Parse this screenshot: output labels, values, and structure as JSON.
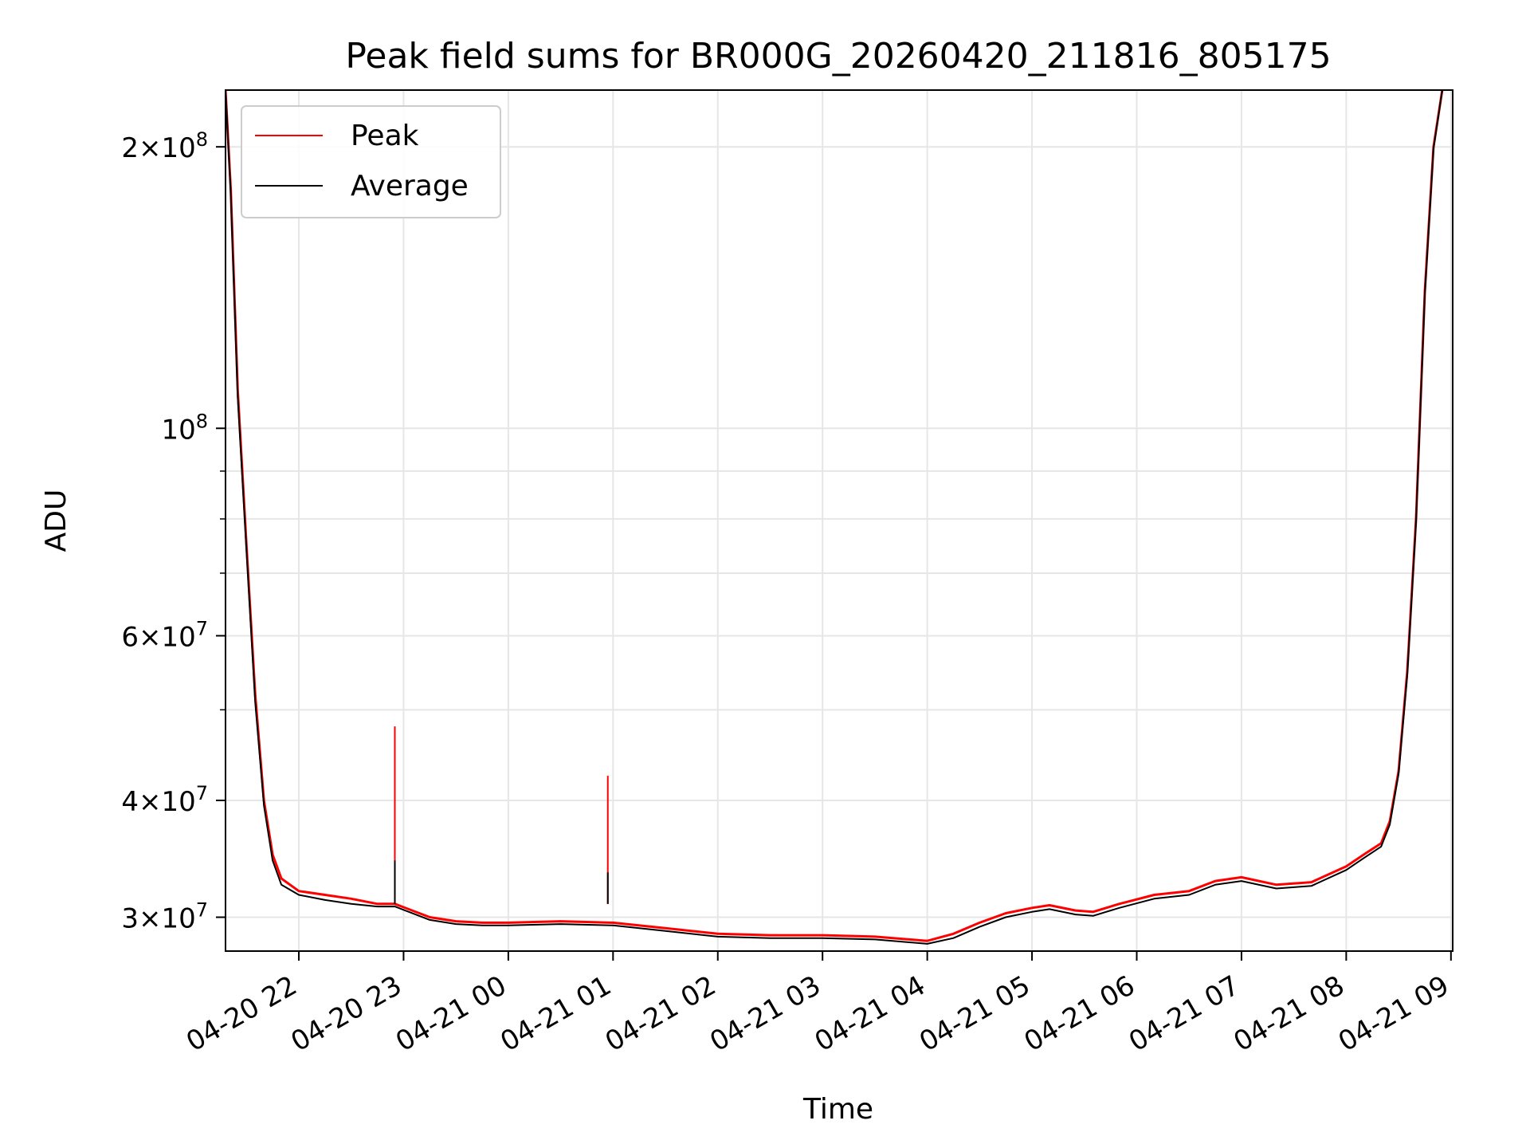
{
  "chart_data": {
    "type": "line",
    "title": "Peak field sums for BR000G_20260420_211816_805175",
    "xlabel": "Time",
    "ylabel": "ADU",
    "yscale": "log",
    "ylim": [
      27600000,
      230000000
    ],
    "xlim": [
      "2026-04-20 21:18",
      "2026-04-21 09:01"
    ],
    "grid": true,
    "legend_position": "upper-left",
    "x_ticks": [
      {
        "t": "2026-04-20 22:00",
        "label": "04-20 22"
      },
      {
        "t": "2026-04-20 23:00",
        "label": "04-20 23"
      },
      {
        "t": "2026-04-21 00:00",
        "label": "04-21 00"
      },
      {
        "t": "2026-04-21 01:00",
        "label": "04-21 01"
      },
      {
        "t": "2026-04-21 02:00",
        "label": "04-21 02"
      },
      {
        "t": "2026-04-21 03:00",
        "label": "04-21 03"
      },
      {
        "t": "2026-04-21 04:00",
        "label": "04-21 04"
      },
      {
        "t": "2026-04-21 05:00",
        "label": "04-21 05"
      },
      {
        "t": "2026-04-21 06:00",
        "label": "04-21 06"
      },
      {
        "t": "2026-04-21 07:00",
        "label": "04-21 07"
      },
      {
        "t": "2026-04-21 08:00",
        "label": "04-21 08"
      },
      {
        "t": "2026-04-21 09:00",
        "label": "04-21 09"
      }
    ],
    "y_major_ticks": [
      {
        "value": 30000000,
        "mantissa": "3",
        "exp": "7"
      },
      {
        "value": 40000000,
        "mantissa": "4",
        "exp": "7"
      },
      {
        "value": 60000000,
        "mantissa": "6",
        "exp": "7"
      },
      {
        "value": 100000000,
        "mantissa": "",
        "exp": "8"
      },
      {
        "value": 200000000,
        "mantissa": "2",
        "exp": "8"
      }
    ],
    "y_minor_ticks": [
      50000000,
      70000000,
      80000000,
      90000000
    ],
    "series": [
      {
        "name": "Peak",
        "color": "#ff0000",
        "x": [
          "2026-04-20 21:18",
          "2026-04-20 21:21",
          "2026-04-20 21:25",
          "2026-04-20 21:30",
          "2026-04-20 21:35",
          "2026-04-20 21:40",
          "2026-04-20 21:45",
          "2026-04-20 21:50",
          "2026-04-20 22:00",
          "2026-04-20 22:15",
          "2026-04-20 22:30",
          "2026-04-20 22:45",
          "2026-04-20 22:55",
          "2026-04-20 23:15",
          "2026-04-20 23:30",
          "2026-04-20 23:45",
          "2026-04-21 00:00",
          "2026-04-21 00:30",
          "2026-04-21 01:00",
          "2026-04-21 01:30",
          "2026-04-21 02:00",
          "2026-04-21 02:30",
          "2026-04-21 03:00",
          "2026-04-21 03:30",
          "2026-04-21 04:00",
          "2026-04-21 04:15",
          "2026-04-21 04:30",
          "2026-04-21 04:45",
          "2026-04-21 05:00",
          "2026-04-21 05:10",
          "2026-04-21 05:25",
          "2026-04-21 05:35",
          "2026-04-21 05:50",
          "2026-04-21 06:10",
          "2026-04-21 06:30",
          "2026-04-21 06:45",
          "2026-04-21 07:00",
          "2026-04-21 07:20",
          "2026-04-21 07:40",
          "2026-04-21 08:00",
          "2026-04-21 08:10",
          "2026-04-21 08:20",
          "2026-04-21 08:25",
          "2026-04-21 08:30",
          "2026-04-21 08:35",
          "2026-04-21 08:40",
          "2026-04-21 08:45",
          "2026-04-21 08:50",
          "2026-04-21 08:55"
        ],
        "y": [
          230000000,
          180000000,
          110000000,
          75000000,
          52000000,
          40000000,
          35000000,
          33000000,
          32000000,
          31700000,
          31400000,
          31000000,
          31000000,
          30000000,
          29700000,
          29600000,
          29600000,
          29700000,
          29600000,
          29200000,
          28800000,
          28700000,
          28700000,
          28600000,
          28300000,
          28800000,
          29600000,
          30300000,
          30700000,
          30900000,
          30500000,
          30400000,
          31000000,
          31700000,
          32000000,
          32800000,
          33100000,
          32500000,
          32700000,
          34000000,
          35000000,
          36000000,
          38000000,
          43000000,
          55000000,
          80000000,
          140000000,
          200000000,
          230000000
        ]
      },
      {
        "name": "Average",
        "color": "#000000",
        "x": [
          "2026-04-20 21:18",
          "2026-04-20 21:21",
          "2026-04-20 21:25",
          "2026-04-20 21:30",
          "2026-04-20 21:35",
          "2026-04-20 21:40",
          "2026-04-20 21:45",
          "2026-04-20 21:50",
          "2026-04-20 22:00",
          "2026-04-20 22:15",
          "2026-04-20 22:30",
          "2026-04-20 22:45",
          "2026-04-20 22:55",
          "2026-04-20 23:15",
          "2026-04-20 23:30",
          "2026-04-20 23:45",
          "2026-04-21 00:00",
          "2026-04-21 00:30",
          "2026-04-21 01:00",
          "2026-04-21 01:30",
          "2026-04-21 02:00",
          "2026-04-21 02:30",
          "2026-04-21 03:00",
          "2026-04-21 03:30",
          "2026-04-21 04:00",
          "2026-04-21 04:15",
          "2026-04-21 04:30",
          "2026-04-21 04:45",
          "2026-04-21 05:00",
          "2026-04-21 05:10",
          "2026-04-21 05:25",
          "2026-04-21 05:35",
          "2026-04-21 05:50",
          "2026-04-21 06:10",
          "2026-04-21 06:30",
          "2026-04-21 06:45",
          "2026-04-21 07:00",
          "2026-04-21 07:20",
          "2026-04-21 07:40",
          "2026-04-21 08:00",
          "2026-04-21 08:10",
          "2026-04-21 08:20",
          "2026-04-21 08:25",
          "2026-04-21 08:30",
          "2026-04-21 08:35",
          "2026-04-21 08:40",
          "2026-04-21 08:45",
          "2026-04-21 08:50",
          "2026-04-21 08:55"
        ],
        "y": [
          230000000,
          178000000,
          108000000,
          74000000,
          51000000,
          39500000,
          34500000,
          32500000,
          31700000,
          31300000,
          31000000,
          30800000,
          30800000,
          29800000,
          29500000,
          29400000,
          29400000,
          29500000,
          29400000,
          29000000,
          28600000,
          28500000,
          28500000,
          28400000,
          28100000,
          28500000,
          29300000,
          30000000,
          30400000,
          30600000,
          30200000,
          30100000,
          30700000,
          31400000,
          31700000,
          32500000,
          32800000,
          32200000,
          32400000,
          33700000,
          34700000,
          35700000,
          37700000,
          42700000,
          54500000,
          79500000,
          139000000,
          199000000,
          230000000
        ]
      }
    ],
    "spikes": [
      {
        "t": "2026-04-20 22:55",
        "peak": 48000000,
        "average": 34500000
      },
      {
        "t": "2026-04-21 00:57",
        "peak": 42500000,
        "average": 33500000
      }
    ]
  }
}
